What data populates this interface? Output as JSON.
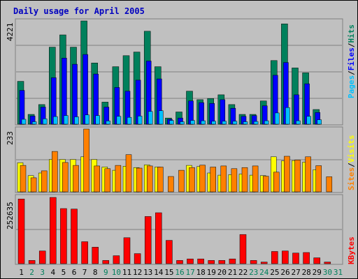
{
  "chart_data": [
    {
      "type": "bar",
      "title": "Daily usage for April 2005",
      "categories": [
        "1",
        "2",
        "3",
        "4",
        "5",
        "6",
        "7",
        "8",
        "9",
        "10",
        "11",
        "12",
        "13",
        "14",
        "15",
        "16",
        "17",
        "18",
        "19",
        "20",
        "21",
        "22",
        "23",
        "24",
        "25",
        "26",
        "27",
        "28",
        "29",
        "30",
        "31"
      ],
      "weekend_days": [
        "2",
        "3",
        "9",
        "10",
        "16",
        "17",
        "23",
        "24",
        "30",
        "31"
      ],
      "ylim": [
        0,
        4221
      ],
      "ymax_label": "4221",
      "legend": [
        {
          "label": "Hits",
          "color": "#00805c"
        },
        {
          "label": "Files",
          "color": "#0000ff"
        },
        {
          "label": "Pages",
          "color": "#00c0ff"
        }
      ],
      "series": [
        {
          "name": "Hits",
          "color": "#00805c",
          "values": [
            1750,
            400,
            800,
            3150,
            3650,
            3150,
            4221,
            2500,
            900,
            2350,
            2800,
            2950,
            3800,
            2350,
            250,
            500,
            1350,
            1000,
            1050,
            1200,
            800,
            400,
            400,
            950,
            2600,
            4100,
            2300,
            2100,
            600,
            0,
            0
          ]
        },
        {
          "name": "Files",
          "color": "#0000ff",
          "values": [
            1380,
            330,
            700,
            1900,
            2700,
            2450,
            2850,
            2050,
            700,
            1500,
            1350,
            1800,
            2580,
            1850,
            200,
            250,
            950,
            880,
            850,
            1000,
            650,
            320,
            350,
            750,
            2000,
            2520,
            1200,
            1650,
            480,
            0,
            0
          ]
        },
        {
          "name": "Pages",
          "color": "#00c0ff",
          "values": [
            200,
            100,
            220,
            310,
            350,
            300,
            380,
            350,
            130,
            320,
            280,
            330,
            520,
            550,
            150,
            100,
            150,
            140,
            120,
            120,
            120,
            100,
            110,
            140,
            460,
            680,
            140,
            320,
            180,
            0,
            0
          ]
        }
      ]
    },
    {
      "type": "bar",
      "categories": [
        "1",
        "2",
        "3",
        "4",
        "5",
        "6",
        "7",
        "8",
        "9",
        "10",
        "11",
        "12",
        "13",
        "14",
        "15",
        "16",
        "17",
        "18",
        "19",
        "20",
        "21",
        "22",
        "23",
        "24",
        "25",
        "26",
        "27",
        "28",
        "29",
        "30",
        "31"
      ],
      "ylim": [
        0,
        233
      ],
      "ymax_label": "233",
      "legend": [
        {
          "label": "Visits",
          "color": "#ffff00"
        },
        {
          "label": "Sites",
          "color": "#ff8000"
        }
      ],
      "series": [
        {
          "name": "Visits",
          "color": "#ffff00",
          "values": [
            108,
            60,
            70,
            120,
            120,
            120,
            130,
            120,
            92,
            80,
            95,
            90,
            100,
            92,
            0,
            0,
            98,
            94,
            70,
            62,
            64,
            66,
            62,
            60,
            130,
            115,
            116,
            110,
            82,
            0,
            0
          ]
        },
        {
          "name": "Sites",
          "color": "#ff8000",
          "values": [
            98,
            52,
            78,
            150,
            109,
            98,
            233,
            96,
            86,
            98,
            138,
            88,
            96,
            92,
            57,
            80,
            90,
            99,
            92,
            96,
            86,
            90,
            96,
            58,
            73,
            132,
            118,
            130,
            97,
            56,
            0
          ]
        }
      ]
    },
    {
      "type": "bar",
      "categories": [
        "1",
        "2",
        "3",
        "4",
        "5",
        "6",
        "7",
        "8",
        "9",
        "10",
        "11",
        "12",
        "13",
        "14",
        "15",
        "16",
        "17",
        "18",
        "19",
        "20",
        "21",
        "22",
        "23",
        "24",
        "25",
        "26",
        "27",
        "28",
        "29",
        "30",
        "31"
      ],
      "ylim": [
        0,
        252635
      ],
      "ymax_label": "252635",
      "legend": [
        {
          "label": "KBytes",
          "color": "#ff0000"
        }
      ],
      "series": [
        {
          "name": "KBytes",
          "color": "#ff0000",
          "values": [
            244000,
            12000,
            48000,
            250000,
            208000,
            206000,
            83000,
            62000,
            12000,
            30000,
            98000,
            38000,
            178000,
            192000,
            88000,
            12000,
            18000,
            18000,
            12000,
            12000,
            18000,
            110000,
            12000,
            6000,
            46000,
            48000,
            40000,
            42000,
            22000,
            6000,
            0
          ]
        }
      ]
    }
  ]
}
